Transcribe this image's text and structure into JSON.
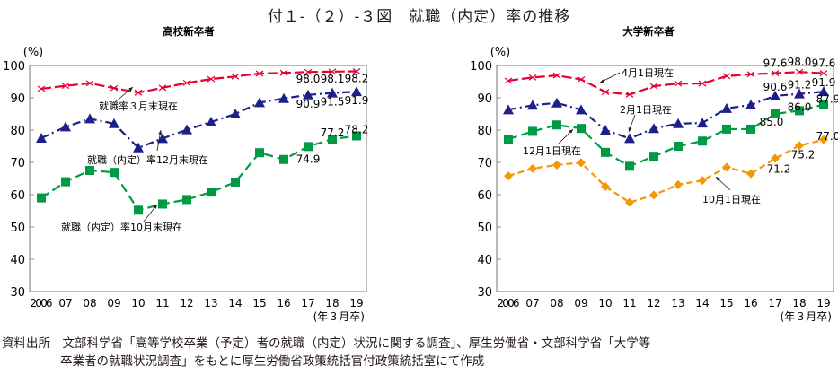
{
  "title": "付１-（２）-３図　就職（内定）率の推移",
  "source_line1": "資料出所　文部科学省「高等学校卒業（予定）者の就職（内定）状況に関する調査」、厚生労働省・文部科学省「大学等",
  "source_line2": "卒業者の就職状況調査」をもとに厚生労働省政策統括官付政策統括室にて作成",
  "chart_data": [
    {
      "type": "line",
      "title": "高校新卒者",
      "ylabel": "(%)",
      "xlabel": "(年３月卒)",
      "ylim": [
        30,
        100
      ],
      "yticks": [
        30,
        40,
        50,
        60,
        70,
        80,
        90,
        100
      ],
      "categories": [
        "2006",
        "07",
        "08",
        "09",
        "10",
        "11",
        "12",
        "13",
        "14",
        "15",
        "16",
        "17",
        "18",
        "19"
      ],
      "grid": false,
      "series": [
        {
          "name": "就職率３月末現在",
          "color": "#e60033",
          "marker": "x",
          "dash": "long",
          "values": [
            92.8,
            93.7,
            94.5,
            93.0,
            91.6,
            93.1,
            94.6,
            95.8,
            96.6,
            97.5,
            97.7,
            98.0,
            98.1,
            98.2
          ],
          "labels": {
            "11": "98.0",
            "12": "98.1",
            "13": "98.2"
          }
        },
        {
          "name": "就職（内定）率12月末現在",
          "color": "#1d2088",
          "marker": "triangle",
          "dash": "dashdot",
          "values": [
            77.5,
            81.0,
            83.5,
            82.0,
            74.5,
            77.4,
            80.1,
            82.5,
            85.0,
            88.5,
            89.8,
            90.9,
            91.5,
            91.9
          ],
          "labels": {
            "11": "90.9",
            "12": "91.5",
            "13": "91.9"
          }
        },
        {
          "name": "就職（内定）率10月末現在",
          "color": "#009944",
          "marker": "square",
          "dash": "mixed",
          "values": [
            59.0,
            64.0,
            67.5,
            66.9,
            55.2,
            57.1,
            58.5,
            60.8,
            63.9,
            73.0,
            70.9,
            74.9,
            77.2,
            78.2
          ],
          "labels": {
            "11": "74.9",
            "12": "77.2",
            "13": "78.2"
          }
        }
      ],
      "annotations": [
        {
          "text": "就職率３月末現在"
        },
        {
          "text": "就職（内定）率12月末現在"
        },
        {
          "text": "就職（内定）率10月末現在"
        }
      ]
    },
    {
      "type": "line",
      "title": "大学新卒者",
      "ylabel": "(%)",
      "xlabel": "(年３月卒)",
      "ylim": [
        30,
        100
      ],
      "yticks": [
        30,
        40,
        50,
        60,
        70,
        80,
        90,
        100
      ],
      "categories": [
        "2006",
        "07",
        "08",
        "09",
        "10",
        "11",
        "12",
        "13",
        "14",
        "15",
        "16",
        "17",
        "18",
        "19"
      ],
      "grid": false,
      "series": [
        {
          "name": "4月1日現在",
          "color": "#e60033",
          "marker": "x",
          "dash": "long",
          "values": [
            95.3,
            96.3,
            96.9,
            95.7,
            91.8,
            91.0,
            93.6,
            94.4,
            94.4,
            96.7,
            97.3,
            97.6,
            98.0,
            97.6
          ],
          "labels": {
            "11": "97.6",
            "12": "98.0",
            "13": "97.6"
          }
        },
        {
          "name": "2月1日現在",
          "color": "#1d2088",
          "marker": "triangle",
          "dash": "dashdot",
          "values": [
            86.3,
            87.7,
            88.4,
            86.3,
            80.0,
            77.4,
            80.5,
            82.0,
            82.2,
            86.7,
            87.8,
            90.6,
            91.2,
            91.9
          ],
          "labels": {
            "11": "90.6",
            "12": "91.2",
            "13": "91.9"
          }
        },
        {
          "name": "12月1日現在",
          "color": "#009944",
          "marker": "square",
          "dash": "mixed",
          "values": [
            77.2,
            79.6,
            81.6,
            80.5,
            73.1,
            68.8,
            71.9,
            75.0,
            76.6,
            80.3,
            80.3,
            85.0,
            86.0,
            87.9
          ],
          "labels": {
            "11": "85.0",
            "12": "86.0",
            "13": "87.9"
          }
        },
        {
          "name": "10月1日現在",
          "color": "#f39800",
          "marker": "diamond",
          "dash": "short",
          "values": [
            65.8,
            68.1,
            69.2,
            69.9,
            62.5,
            57.6,
            59.9,
            63.1,
            64.4,
            68.5,
            66.5,
            71.2,
            75.2,
            77.0
          ],
          "labels": {
            "11": "71.2",
            "12": "75.2",
            "13": "77.0"
          }
        }
      ],
      "annotations": [
        {
          "text": "4月1日現在"
        },
        {
          "text": "2月1日現在"
        },
        {
          "text": "12月1日現在"
        },
        {
          "text": "10月1日現在"
        }
      ]
    }
  ]
}
